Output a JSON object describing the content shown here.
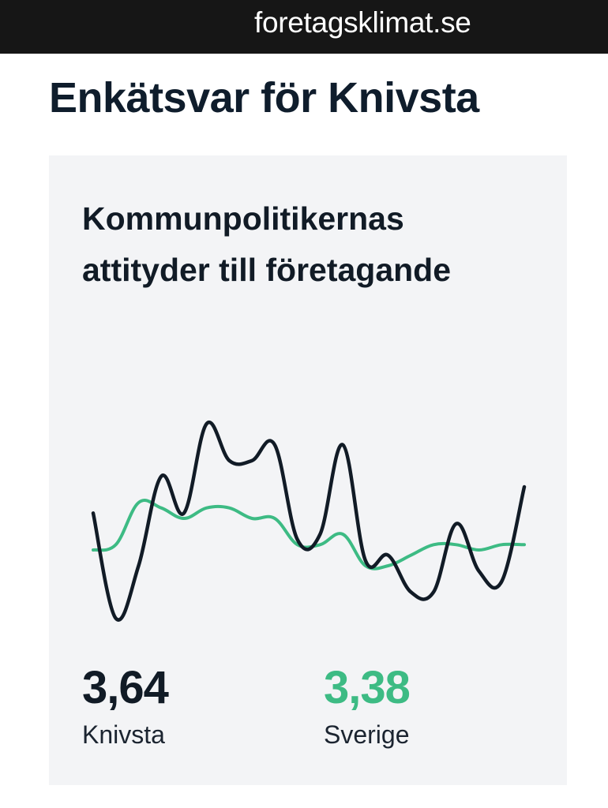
{
  "browser": {
    "url": "foretagsklimat.se"
  },
  "page": {
    "title": "Enkätsvar för Knivsta"
  },
  "card": {
    "title": "Kommunpolitikernas attityder till företagande",
    "stats": {
      "knivsta": {
        "value": "3,64",
        "label": "Knivsta"
      },
      "sverige": {
        "value": "3,38",
        "label": "Sverige"
      }
    }
  },
  "colors": {
    "knivsta": "#111b26",
    "sverige": "#3dbb84",
    "background": "#f3f4f6"
  },
  "chart_data": {
    "type": "line",
    "title": "",
    "xlabel": "",
    "ylabel": "",
    "grid": false,
    "legend": "none",
    "x": [
      1,
      2,
      3,
      4,
      5,
      6,
      7,
      8,
      9,
      10,
      11,
      12,
      13,
      14,
      15,
      16,
      17,
      18,
      19,
      20
    ],
    "ylim": [
      1.8,
      6.0
    ],
    "series": [
      {
        "name": "Knivsta",
        "color": "#111b26",
        "values": [
          4.0,
          2.0,
          3.0,
          4.7,
          4.0,
          5.7,
          5.0,
          5.0,
          5.3,
          3.5,
          3.6,
          5.3,
          3.1,
          3.2,
          2.5,
          2.5,
          3.8,
          2.9,
          2.7,
          4.5
        ]
      },
      {
        "name": "Sverige",
        "color": "#3dbb84",
        "values": [
          3.3,
          3.4,
          4.2,
          4.1,
          3.9,
          4.1,
          4.1,
          3.9,
          3.9,
          3.4,
          3.4,
          3.6,
          3.0,
          3.0,
          3.2,
          3.4,
          3.4,
          3.3,
          3.4,
          3.4
        ]
      }
    ]
  }
}
